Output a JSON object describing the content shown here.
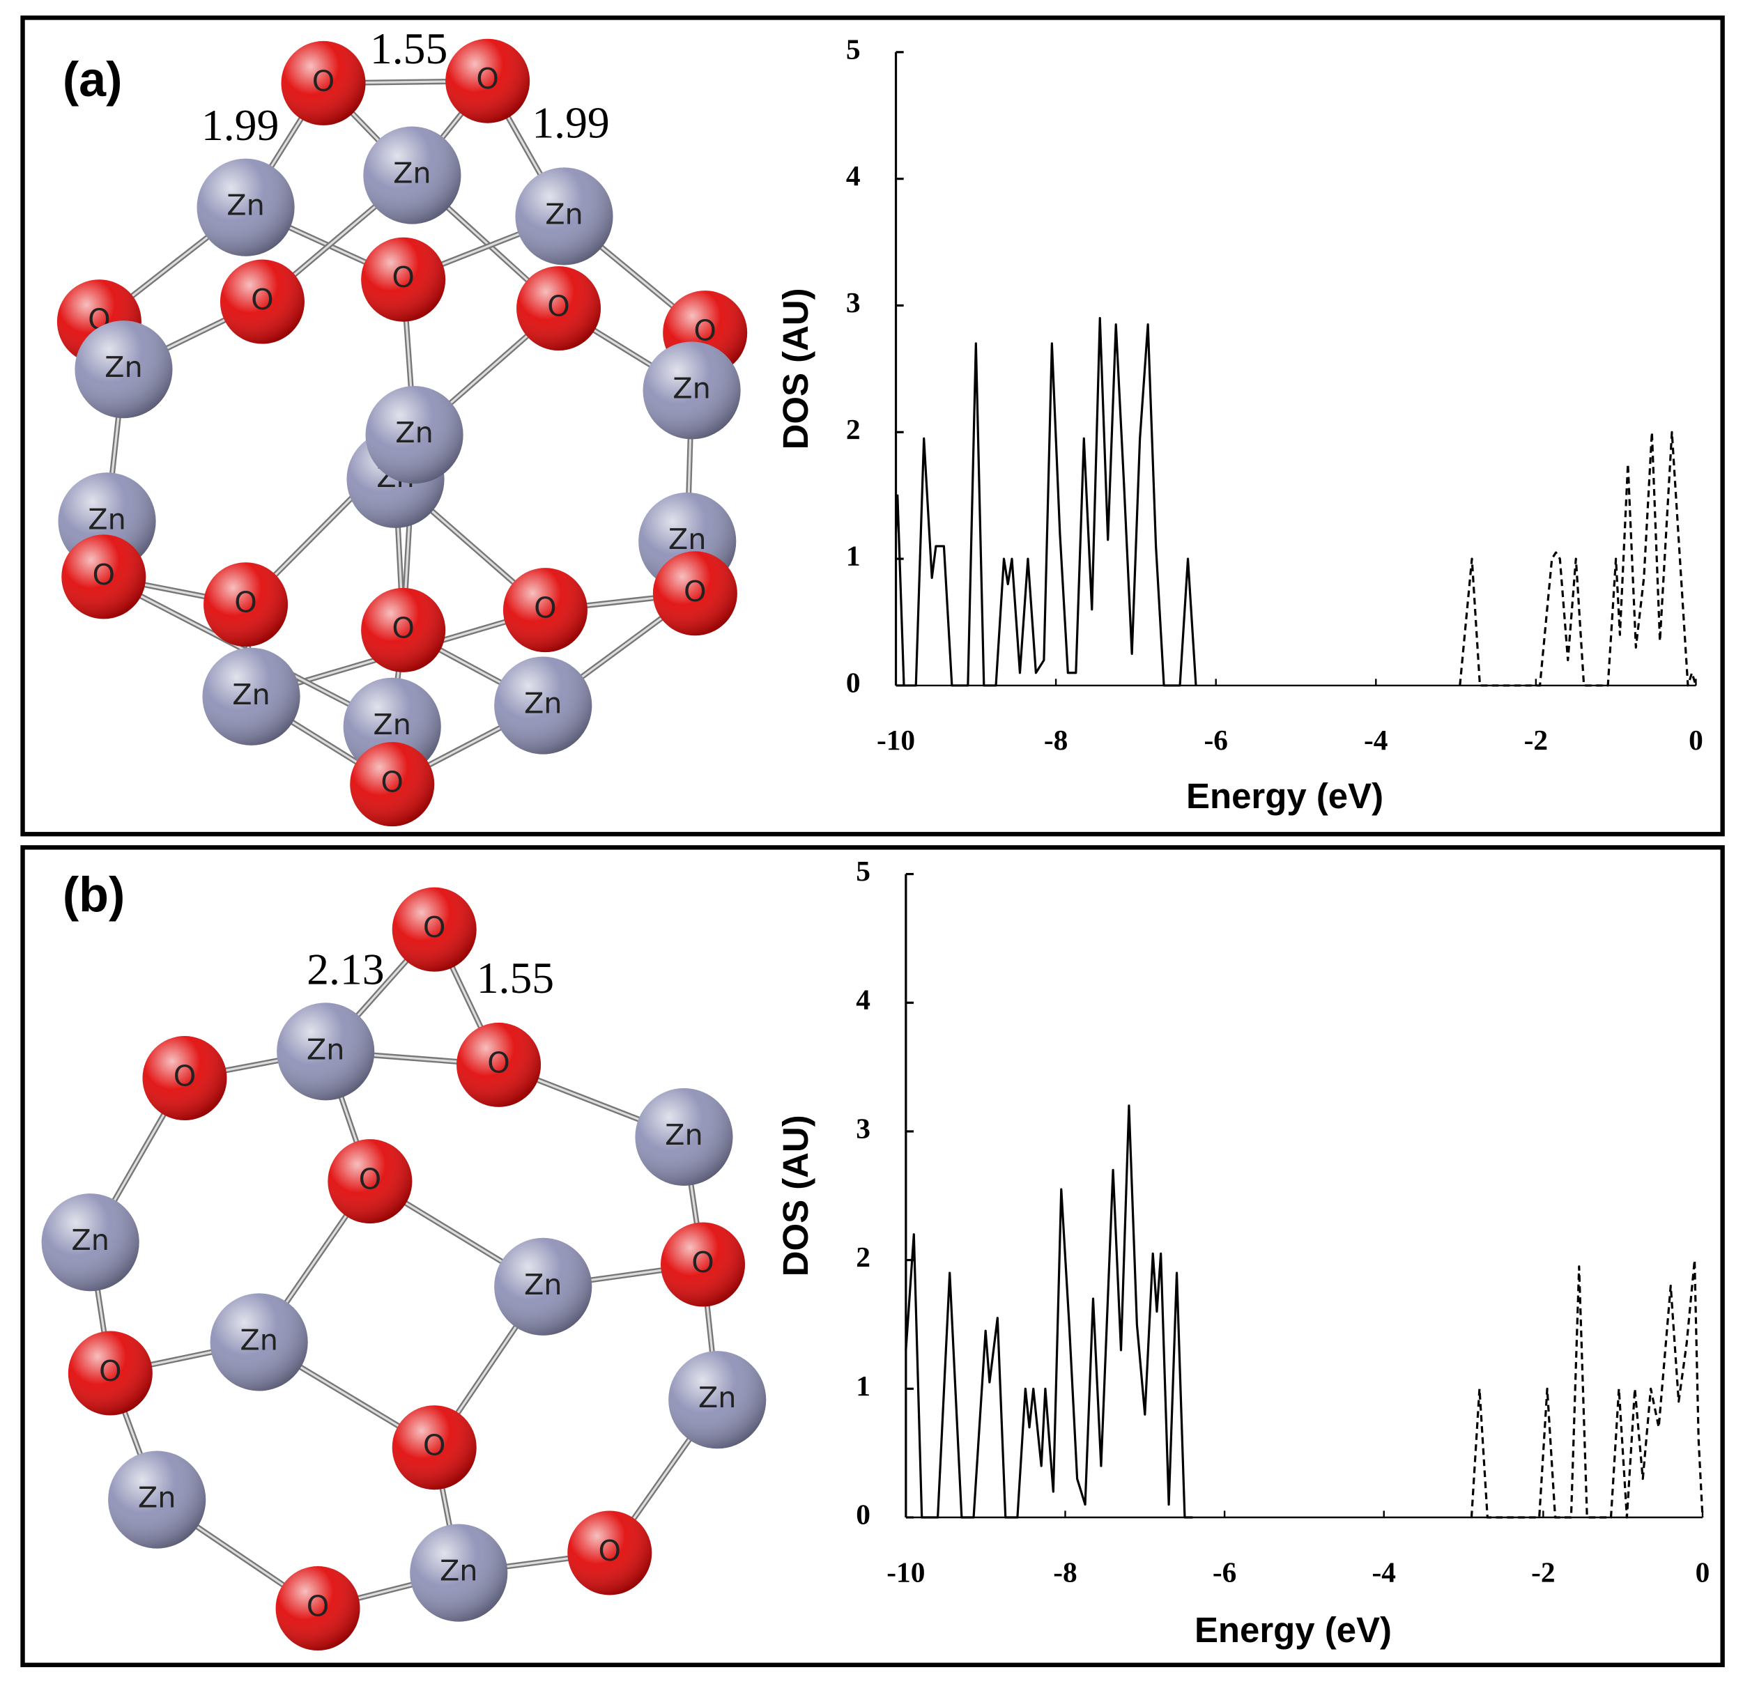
{
  "panels": [
    {
      "label": "(a)",
      "structure": {
        "bond_lengths": [
          1.55,
          1.99,
          1.99
        ],
        "atoms": [
          {
            "label": "O",
            "color": "#e00000"
          },
          {
            "label": "O",
            "color": "#e00000"
          },
          {
            "label": "Zn",
            "color": "#8a8db4"
          },
          {
            "label": "Zn",
            "color": "#8a8db4"
          },
          {
            "label": "Zn",
            "color": "#8a8db4"
          },
          {
            "label": "O",
            "color": "#e00000"
          },
          {
            "label": "O",
            "color": "#e00000"
          },
          {
            "label": "O",
            "color": "#e00000"
          },
          {
            "label": "O",
            "color": "#e00000"
          },
          {
            "label": "O",
            "color": "#e00000"
          },
          {
            "label": "Zn",
            "color": "#8a8db4"
          },
          {
            "label": "Zn",
            "color": "#8a8db4"
          },
          {
            "label": "Zn",
            "color": "#8a8db4"
          },
          {
            "label": "Zn",
            "color": "#8a8db4"
          },
          {
            "label": "Zn",
            "color": "#8a8db4"
          },
          {
            "label": "Zn",
            "color": "#8a8db4"
          },
          {
            "label": "O",
            "color": "#e00000"
          },
          {
            "label": "O",
            "color": "#e00000"
          },
          {
            "label": "O",
            "color": "#e00000"
          },
          {
            "label": "O",
            "color": "#e00000"
          },
          {
            "label": "O",
            "color": "#e00000"
          },
          {
            "label": "Zn",
            "color": "#8a8db4"
          },
          {
            "label": "Zn",
            "color": "#8a8db4"
          },
          {
            "label": "Zn",
            "color": "#8a8db4"
          },
          {
            "label": "O",
            "color": "#e00000"
          }
        ]
      },
      "chart_data": {
        "type": "line",
        "x_label": "Energy (eV)",
        "y_label": "DOS (AU)",
        "xlim": [
          -10,
          0
        ],
        "ylim": [
          0,
          5
        ],
        "xticks": [
          -10,
          -8,
          -6,
          -4,
          -2,
          0
        ],
        "yticks": [
          0,
          1,
          2,
          3,
          4,
          5
        ],
        "series": [
          {
            "color": "#000000",
            "dashed": false,
            "x": [
              -10,
              -9.98,
              -9.9,
              -9.75,
              -9.65,
              -9.55,
              -9.5,
              -9.4,
              -9.3,
              -9.1,
              -9.0,
              -8.9,
              -8.75,
              -8.65,
              -8.6,
              -8.55,
              -8.45,
              -8.35,
              -8.25,
              -8.15,
              -8.05,
              -7.95,
              -7.85,
              -7.75,
              -7.65,
              -7.55,
              -7.45,
              -7.35,
              -7.25,
              -7.15,
              -7.05,
              -6.95,
              -6.85,
              -6.75,
              -6.65,
              -6.45,
              -6.35,
              -6.25
            ],
            "values": [
              1.2,
              1.5,
              0,
              0,
              1.95,
              0.85,
              1.1,
              1.1,
              0,
              0,
              2.7,
              0,
              0,
              1.0,
              0.8,
              1.0,
              0.1,
              1.0,
              0.1,
              0.2,
              2.7,
              1.2,
              0.1,
              0.1,
              1.95,
              0.6,
              2.9,
              1.15,
              2.85,
              1.6,
              0.25,
              1.95,
              2.85,
              1.1,
              0,
              0,
              1.0,
              0
            ]
          },
          {
            "color": "#000000",
            "dashed": true,
            "x": [
              -2.95,
              -2.8,
              -2.7,
              -1.95,
              -1.8,
              -1.75,
              -1.7,
              -1.6,
              -1.5,
              -1.4,
              -1.1,
              -1.0,
              -0.95,
              -0.85,
              -0.75,
              -0.65,
              -0.55,
              -0.45,
              -0.3,
              -0.2,
              -0.1,
              -0.05,
              0
            ],
            "values": [
              0,
              1.0,
              0,
              0,
              1.0,
              1.05,
              1.0,
              0.2,
              1.0,
              0,
              0,
              1.0,
              0.4,
              1.75,
              0.3,
              0.85,
              2.0,
              0.35,
              2.0,
              1.0,
              0,
              0.1,
              0
            ]
          }
        ]
      }
    },
    {
      "label": "(b)",
      "structure": {
        "bond_lengths": [
          2.13,
          1.55
        ],
        "atoms": [
          {
            "label": "O",
            "color": "#e00000"
          },
          {
            "label": "Zn",
            "color": "#8a8db4"
          },
          {
            "label": "O",
            "color": "#e00000"
          },
          {
            "label": "O",
            "color": "#e00000"
          },
          {
            "label": "Zn",
            "color": "#8a8db4"
          },
          {
            "label": "O",
            "color": "#e00000"
          },
          {
            "label": "Zn",
            "color": "#8a8db4"
          },
          {
            "label": "Zn",
            "color": "#8a8db4"
          },
          {
            "label": "O",
            "color": "#e00000"
          },
          {
            "label": "Zn",
            "color": "#8a8db4"
          },
          {
            "label": "O",
            "color": "#e00000"
          },
          {
            "label": "Zn",
            "color": "#8a8db4"
          },
          {
            "label": "O",
            "color": "#e00000"
          },
          {
            "label": "Zn",
            "color": "#8a8db4"
          },
          {
            "label": "O",
            "color": "#e00000"
          },
          {
            "label": "Zn",
            "color": "#8a8db4"
          },
          {
            "label": "O",
            "color": "#e00000"
          }
        ]
      },
      "chart_data": {
        "type": "line",
        "x_label": "Energy (eV)",
        "y_label": "DOS (AU)",
        "xlim": [
          -10,
          0
        ],
        "ylim": [
          0,
          5
        ],
        "xticks": [
          -10,
          -8,
          -6,
          -4,
          -2,
          0
        ],
        "yticks": [
          0,
          1,
          2,
          3,
          4,
          5
        ],
        "series": [
          {
            "color": "#000000",
            "dashed": false,
            "x": [
              -10,
              -9.9,
              -9.8,
              -9.6,
              -9.45,
              -9.3,
              -9.15,
              -9.0,
              -8.95,
              -8.85,
              -8.75,
              -8.6,
              -8.5,
              -8.45,
              -8.4,
              -8.3,
              -8.25,
              -8.15,
              -8.05,
              -7.95,
              -7.85,
              -7.75,
              -7.65,
              -7.55,
              -7.4,
              -7.3,
              -7.2,
              -7.1,
              -7.0,
              -6.9,
              -6.85,
              -6.8,
              -6.7,
              -6.6,
              -6.5,
              -6.4
            ],
            "values": [
              1.3,
              2.2,
              0,
              0,
              1.9,
              0,
              0,
              1.45,
              1.05,
              1.55,
              0,
              0,
              1.0,
              0.7,
              1.0,
              0.4,
              1.0,
              0.2,
              2.55,
              1.5,
              0.3,
              0.1,
              1.7,
              0.4,
              2.7,
              1.3,
              3.2,
              1.5,
              0.8,
              2.05,
              1.6,
              2.05,
              0.1,
              1.9,
              0,
              0
            ]
          },
          {
            "color": "#000000",
            "dashed": true,
            "x": [
              -2.9,
              -2.8,
              -2.7,
              -2.05,
              -1.95,
              -1.85,
              -1.65,
              -1.55,
              -1.45,
              -1.15,
              -1.05,
              -0.95,
              -0.85,
              -0.75,
              -0.65,
              -0.55,
              -0.4,
              -0.3,
              -0.2,
              -0.1,
              -0.05,
              0
            ],
            "values": [
              0,
              1.0,
              0,
              0,
              1.0,
              0,
              0,
              1.95,
              0,
              0,
              1.0,
              0,
              1.0,
              0.3,
              1.0,
              0.7,
              1.8,
              0.9,
              1.35,
              2.0,
              0.6,
              0
            ]
          }
        ]
      }
    }
  ]
}
